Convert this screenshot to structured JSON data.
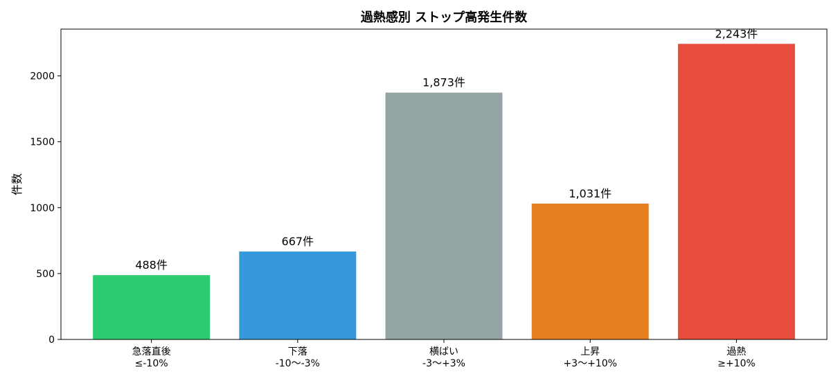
{
  "chart_data": {
    "type": "bar",
    "title": "過熱感別 ストップ高発生件数",
    "xlabel": "",
    "ylabel": "件数",
    "ylim": [
      0,
      2355
    ],
    "yticks": [
      0,
      500,
      1000,
      1500,
      2000
    ],
    "grid": false,
    "categories": [
      [
        "急落直後",
        "≤-10%"
      ],
      [
        "下落",
        "-10〜-3%"
      ],
      [
        "横ばい",
        "-3〜+3%"
      ],
      [
        "上昇",
        "+3〜+10%"
      ],
      [
        "過熱",
        "≥+10%"
      ]
    ],
    "values": [
      488,
      667,
      1873,
      1031,
      2243
    ],
    "data_labels": [
      "488件",
      "667件",
      "1,873件",
      "1,031件",
      "2,243件"
    ],
    "colors": [
      "#2ecc71",
      "#3498db",
      "#95a5a6",
      "#e67e22",
      "#e74c3c"
    ]
  }
}
